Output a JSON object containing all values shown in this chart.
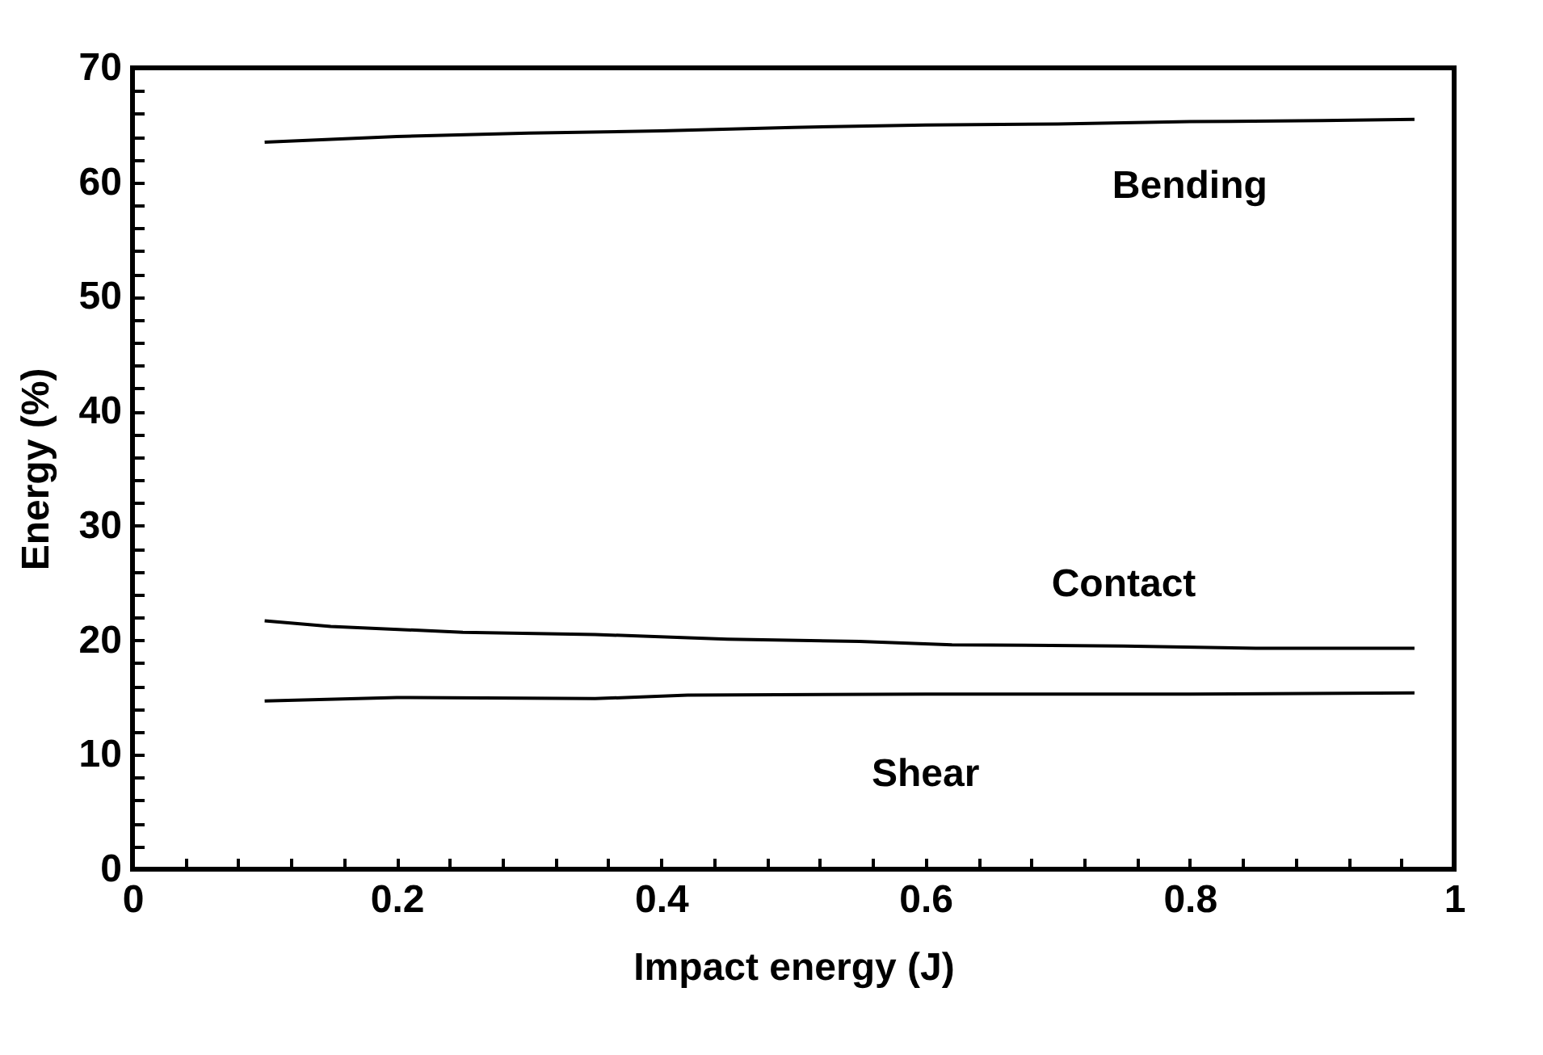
{
  "chart_data": {
    "type": "line",
    "xlabel": "Impact energy (J)",
    "ylabel": "Energy (%)",
    "xlim": [
      0,
      1
    ],
    "ylim": [
      0,
      70
    ],
    "xticks": [
      0,
      {
        "value": 0.04,
        "label": null
      },
      {
        "value": 0.08,
        "label": null
      },
      {
        "value": 0.12,
        "label": null
      },
      {
        "value": 0.16,
        "label": null
      },
      0.2,
      {
        "value": 0.24,
        "label": null
      },
      {
        "value": 0.28,
        "label": null
      },
      {
        "value": 0.32,
        "label": null
      },
      {
        "value": 0.36,
        "label": null
      },
      0.4,
      {
        "value": 0.44,
        "label": null
      },
      {
        "value": 0.48,
        "label": null
      },
      {
        "value": 0.52,
        "label": null
      },
      {
        "value": 0.56,
        "label": null
      },
      0.6,
      {
        "value": 0.64,
        "label": null
      },
      {
        "value": 0.68,
        "label": null
      },
      {
        "value": 0.72,
        "label": null
      },
      {
        "value": 0.76,
        "label": null
      },
      0.8,
      {
        "value": 0.84,
        "label": null
      },
      {
        "value": 0.88,
        "label": null
      },
      {
        "value": 0.92,
        "label": null
      },
      {
        "value": 0.96,
        "label": null
      },
      1
    ],
    "yticks": [
      0,
      {
        "value": 2,
        "label": null
      },
      {
        "value": 4,
        "label": null
      },
      {
        "value": 6,
        "label": null
      },
      {
        "value": 8,
        "label": null
      },
      10,
      {
        "value": 12,
        "label": null
      },
      {
        "value": 14,
        "label": null
      },
      {
        "value": 16,
        "label": null
      },
      {
        "value": 18,
        "label": null
      },
      20,
      {
        "value": 22,
        "label": null
      },
      {
        "value": 24,
        "label": null
      },
      {
        "value": 26,
        "label": null
      },
      {
        "value": 28,
        "label": null
      },
      30,
      {
        "value": 32,
        "label": null
      },
      {
        "value": 34,
        "label": null
      },
      {
        "value": 36,
        "label": null
      },
      {
        "value": 38,
        "label": null
      },
      40,
      {
        "value": 42,
        "label": null
      },
      {
        "value": 44,
        "label": null
      },
      {
        "value": 46,
        "label": null
      },
      {
        "value": 48,
        "label": null
      },
      50,
      {
        "value": 52,
        "label": null
      },
      {
        "value": 54,
        "label": null
      },
      {
        "value": 56,
        "label": null
      },
      {
        "value": 58,
        "label": null
      },
      60,
      {
        "value": 62,
        "label": null
      },
      {
        "value": 64,
        "label": null
      },
      {
        "value": 66,
        "label": null
      },
      {
        "value": 68,
        "label": null
      },
      70
    ],
    "grid": false,
    "legend": false,
    "marker": "none",
    "line_style": "solid",
    "series": [
      {
        "name": "Bending",
        "color": "#000000",
        "x": [
          0.1,
          0.2,
          0.3,
          0.4,
          0.5,
          0.6,
          0.7,
          0.8,
          0.9,
          0.97
        ],
        "values": [
          63.5,
          64.0,
          64.3,
          64.5,
          64.8,
          65.0,
          65.1,
          65.3,
          65.4,
          65.5
        ]
      },
      {
        "name": "Contact",
        "color": "#000000",
        "x": [
          0.1,
          0.15,
          0.25,
          0.35,
          0.45,
          0.55,
          0.62,
          0.75,
          0.85,
          0.97
        ],
        "values": [
          21.7,
          21.2,
          20.7,
          20.5,
          20.1,
          19.9,
          19.6,
          19.5,
          19.3,
          19.3
        ]
      },
      {
        "name": "Shear",
        "color": "#000000",
        "x": [
          0.1,
          0.2,
          0.35,
          0.42,
          0.6,
          0.8,
          0.97
        ],
        "values": [
          14.7,
          15.0,
          14.9,
          15.2,
          15.3,
          15.3,
          15.4
        ]
      }
    ]
  }
}
